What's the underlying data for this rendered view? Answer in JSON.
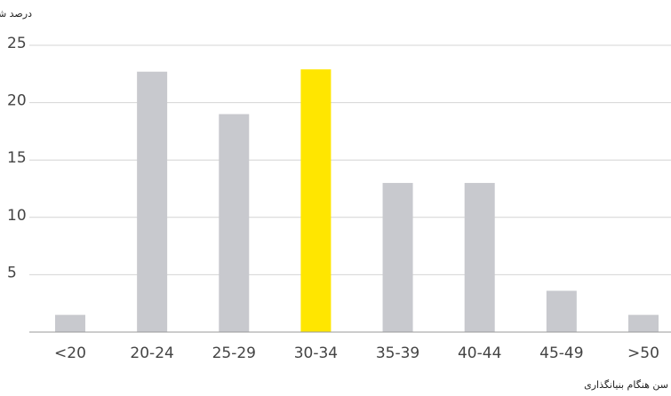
{
  "chart_data": {
    "type": "bar",
    "y_label": "درصد شرکت‌ها",
    "x_label": "سن هنگام بنیانگذاری",
    "categories": [
      "<20",
      "20-24",
      "25-29",
      "30-34",
      "35-39",
      "40-44",
      "45-49",
      ">50"
    ],
    "values": [
      1.5,
      22.7,
      19.0,
      22.9,
      13.0,
      13.0,
      3.6,
      1.5
    ],
    "colors": [
      "#c8c9ce",
      "#c8c9ce",
      "#c8c9ce",
      "#ffe600",
      "#c8c9ce",
      "#c8c9ce",
      "#c8c9ce",
      "#c8c9ce"
    ],
    "ylim": [
      0,
      25
    ],
    "yticks": [
      5,
      10,
      15,
      20,
      25
    ],
    "grid": true
  }
}
